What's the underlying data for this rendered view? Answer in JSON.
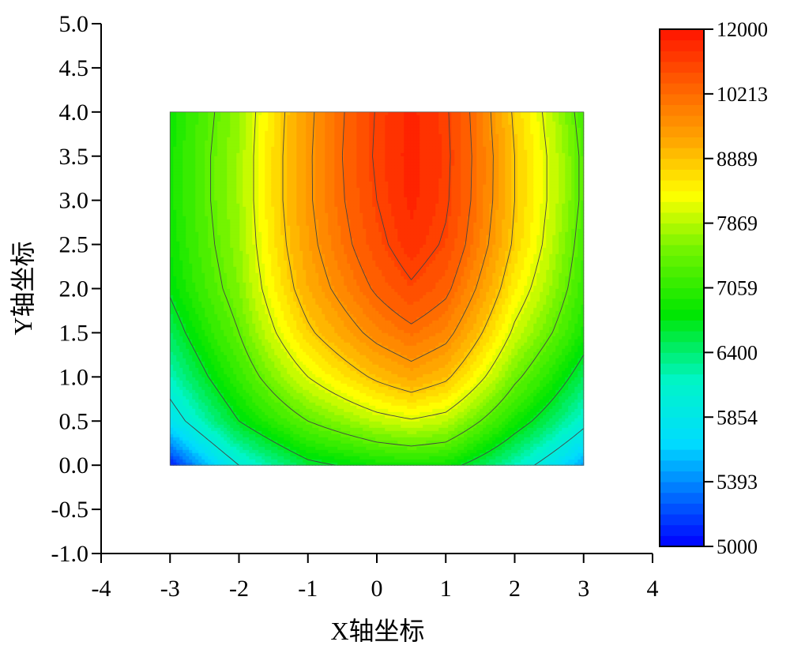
{
  "chart_data": {
    "type": "heatmap",
    "subtype": "filled-contour",
    "title": "",
    "xlabel": "X轴坐标",
    "ylabel": "Y轴坐标",
    "xlim": [
      -4,
      4
    ],
    "ylim": [
      -1.0,
      5.0
    ],
    "x_ticks": [
      "-4",
      "-3",
      "-2",
      "-1",
      "0",
      "1",
      "2",
      "3",
      "4"
    ],
    "y_ticks": [
      "5.0",
      "4.5",
      "4.0",
      "3.5",
      "3.0",
      "2.5",
      "2.0",
      "1.5",
      "1.0",
      "0.5",
      "0.0",
      "-0.5",
      "-1.0"
    ],
    "data_extent": {
      "x": [
        -3,
        3
      ],
      "y": [
        0,
        4
      ]
    },
    "colorbar": {
      "min": 5000,
      "max": 12000,
      "labels": [
        "12000",
        "10213",
        "8889",
        "7869",
        "7059",
        "6400",
        "5854",
        "5393",
        "5000"
      ],
      "colormap": "rainbow",
      "position": "right",
      "levels": 48
    },
    "z_grid": {
      "x": [
        -3,
        -2,
        -1,
        0,
        0.5,
        1,
        2,
        3
      ],
      "y": [
        0,
        0.5,
        1,
        1.5,
        2,
        2.5,
        3,
        3.5,
        4
      ],
      "values": [
        [
          5100,
          6000,
          6600,
          6850,
          6900,
          6850,
          6200,
          5500
        ],
        [
          5800,
          6700,
          7400,
          7900,
          8050,
          7900,
          6900,
          6100
        ],
        [
          6200,
          7100,
          8100,
          8900,
          9200,
          8900,
          7500,
          6500
        ],
        [
          6500,
          7400,
          8700,
          9700,
          10050,
          9700,
          8000,
          6900
        ],
        [
          6750,
          7600,
          9100,
          10300,
          10800,
          10350,
          8400,
          7100
        ],
        [
          6850,
          7700,
          9300,
          10700,
          11300,
          10800,
          8700,
          7200
        ],
        [
          6900,
          7750,
          9400,
          10900,
          11500,
          11000,
          8800,
          7300
        ],
        [
          6900,
          7750,
          9400,
          11000,
          11550,
          11050,
          8800,
          7300
        ],
        [
          6850,
          7700,
          9350,
          10950,
          11500,
          11000,
          8700,
          7200
        ]
      ]
    },
    "grid": false,
    "legend": "none"
  }
}
